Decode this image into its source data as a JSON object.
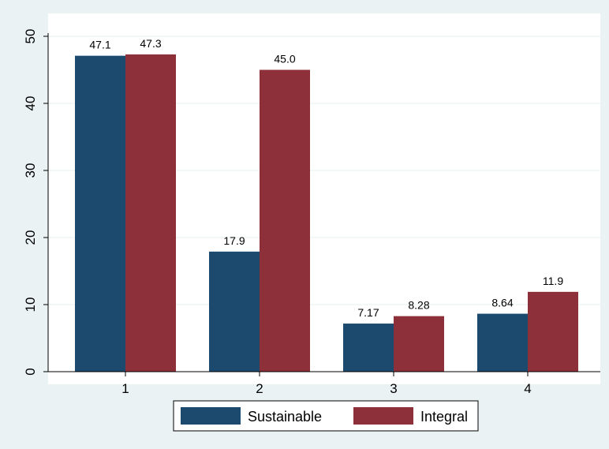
{
  "chart_data": {
    "type": "bar",
    "categories": [
      "1",
      "2",
      "3",
      "4"
    ],
    "series": [
      {
        "name": "Sustainable",
        "values": [
          47.1,
          17.9,
          7.17,
          8.64
        ],
        "labels": [
          "47.1",
          "17.9",
          "7.17",
          "8.64"
        ],
        "color": "#1b4a6e"
      },
      {
        "name": "Integral",
        "values": [
          47.3,
          45.0,
          8.28,
          11.9
        ],
        "labels": [
          "47.3",
          "45.0",
          "8.28",
          "11.9"
        ],
        "color": "#8e3039"
      }
    ],
    "ylim": [
      0,
      50
    ],
    "yticks": [
      "0",
      "10",
      "20",
      "30",
      "40",
      "50"
    ],
    "grid": true,
    "legend_position": "bottom",
    "title": "",
    "xlabel": "",
    "ylabel": ""
  },
  "colors": {
    "outer_background": "#eaf2f3",
    "plot_background": "#ffffff",
    "grid": "#eaf2f3"
  }
}
